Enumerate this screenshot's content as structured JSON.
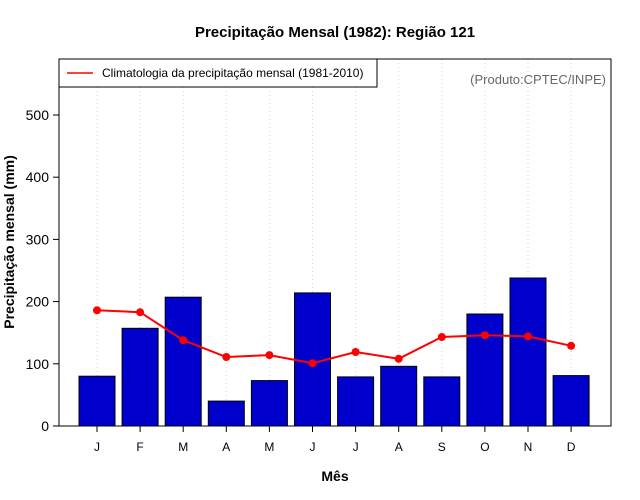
{
  "chart_data": {
    "type": "bar",
    "title": "Precipitação Mensal (1982): Região 121",
    "xlabel": "Mês",
    "ylabel": "Precipitação mensal (mm)",
    "ylim": [
      0,
      590
    ],
    "yticks": [
      0,
      100,
      200,
      300,
      400,
      500
    ],
    "categories": [
      "J",
      "F",
      "M",
      "A",
      "M",
      "J",
      "J",
      "A",
      "S",
      "O",
      "N",
      "D"
    ],
    "values": [
      80,
      157,
      207,
      40,
      73,
      214,
      79,
      96,
      79,
      180,
      238,
      81
    ],
    "series": [
      {
        "name": "Precipitação mensal (1982)",
        "kind": "bar",
        "values": [
          80,
          157,
          207,
          40,
          73,
          214,
          79,
          96,
          79,
          180,
          238,
          81
        ]
      },
      {
        "name": "Climatologia da precipitação mensal (1981-2010)",
        "kind": "line",
        "values": [
          186,
          183,
          138,
          111,
          114,
          101,
          119,
          108,
          143,
          146,
          144,
          129
        ]
      }
    ],
    "legend": {
      "position": "top-left",
      "entries": [
        "Climatologia da precipitação mensal (1981-2010)"
      ]
    },
    "source_note": "(Produto:CPTEC/INPE)",
    "grid": "vertical-dotted"
  },
  "colors": {
    "bar_fill": "#0000cc",
    "bar_stroke": "#000000",
    "line": "#ff0000",
    "grid": "#d3d3d3"
  }
}
